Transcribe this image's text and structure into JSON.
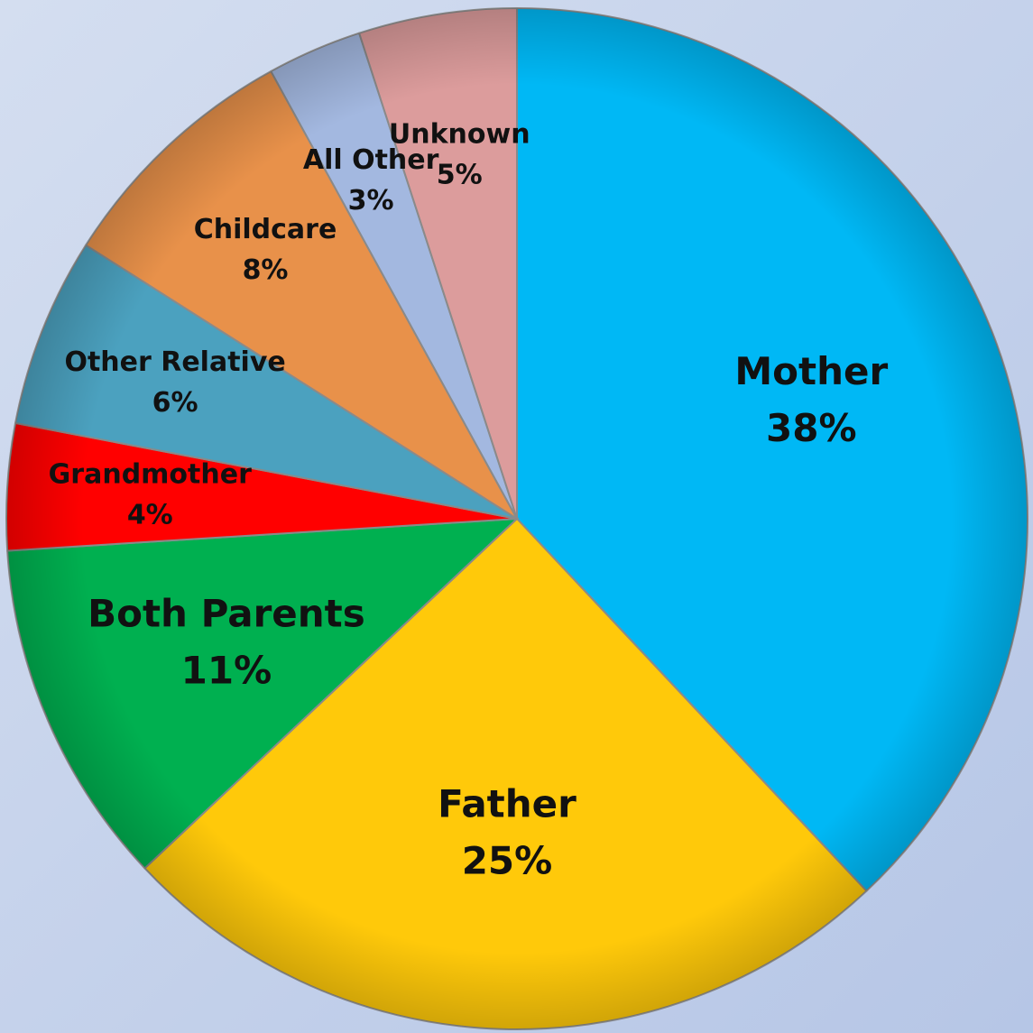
{
  "chart_data": {
    "type": "pie",
    "categories": [
      "Mother",
      "Father",
      "Both Parents",
      "Grandmother",
      "Other Relative",
      "Childcare",
      "All Other",
      "Unknown"
    ],
    "values": [
      38,
      25,
      11,
      4,
      6,
      8,
      3,
      5
    ],
    "value_labels": [
      "38%",
      "25%",
      "11%",
      "4%",
      "6%",
      "8%",
      "3%",
      "5%"
    ],
    "colors": [
      "#00b8f5",
      "#ffc90a",
      "#00b050",
      "#ff0000",
      "#4ba1bf",
      "#e8914a",
      "#a3b8e0",
      "#dc9c9c"
    ]
  }
}
